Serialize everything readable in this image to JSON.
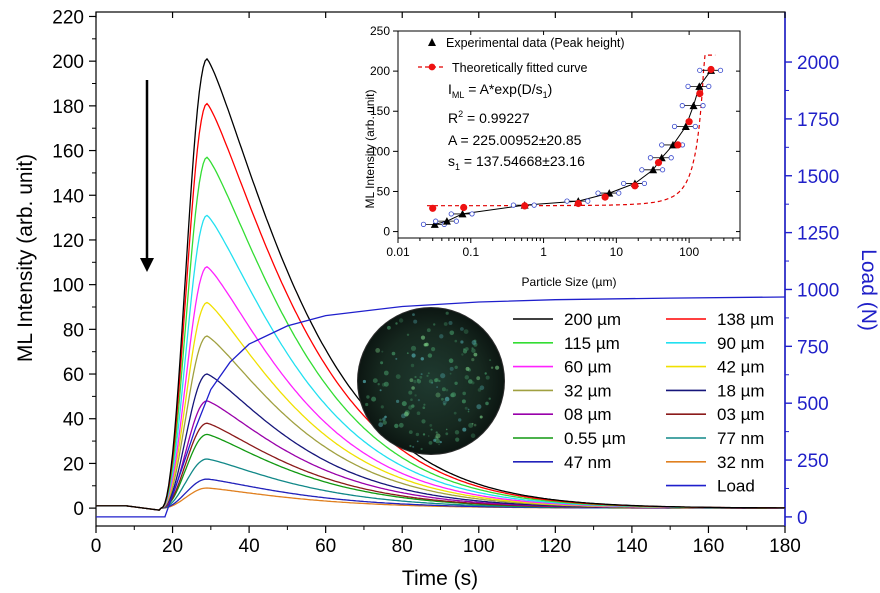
{
  "chart_data": [
    {
      "type": "line",
      "xlabel": "Time (s)",
      "ylabel": "ML Intensity (arb. unit)",
      "y2label": "Load (N)",
      "xlim": [
        0,
        180
      ],
      "ylim": [
        -8,
        222
      ],
      "y2lim": [
        -40,
        2220
      ],
      "xticks": [
        0,
        20,
        40,
        60,
        80,
        100,
        120,
        140,
        160,
        180
      ],
      "yticks": [
        0,
        20,
        40,
        60,
        80,
        100,
        120,
        140,
        160,
        180,
        200,
        220
      ],
      "y2ticks": [
        0,
        250,
        500,
        750,
        1000,
        1250,
        1500,
        1750,
        2000
      ],
      "peak_time": 29,
      "series": [
        {
          "name": "200 µm",
          "peak": 201,
          "color": "#000000"
        },
        {
          "name": "138 µm",
          "peak": 181,
          "color": "#ff0000"
        },
        {
          "name": "115 µm",
          "peak": 157,
          "color": "#33dd33"
        },
        {
          "name": "90 µm",
          "peak": 131,
          "color": "#22e0f0"
        },
        {
          "name": "60 µm",
          "peak": 108,
          "color": "#ff22ff"
        },
        {
          "name": "42 µm",
          "peak": 92,
          "color": "#f0e000"
        },
        {
          "name": "32 µm",
          "peak": 77,
          "color": "#a0a040"
        },
        {
          "name": "18 µm",
          "peak": 60,
          "color": "#15157a"
        },
        {
          "name": "08 µm",
          "peak": 48,
          "color": "#9900aa"
        },
        {
          "name": "03 µm",
          "peak": 38,
          "color": "#8b1a1a"
        },
        {
          "name": "0.55 µm",
          "peak": 33,
          "color": "#119911"
        },
        {
          "name": "77 nm",
          "peak": 22,
          "color": "#118888"
        },
        {
          "name": "47 nm",
          "peak": 13,
          "color": "#2222bb"
        },
        {
          "name": "32 nm",
          "peak": 9,
          "color": "#e08020"
        }
      ],
      "load": {
        "name": "Load",
        "color": "#1f1fcc",
        "x": [
          18,
          22,
          26,
          30,
          35,
          40,
          50,
          60,
          80,
          100,
          120,
          150,
          180
        ],
        "y": [
          0,
          190,
          390,
          560,
          680,
          760,
          840,
          885,
          925,
          945,
          955,
          962,
          967
        ]
      }
    },
    {
      "type": "scatter",
      "xlabel": "Particle Size (µm)",
      "ylabel": "ML Intensity (arb. unit)",
      "xscale": "log",
      "xlim": [
        0.01,
        500
      ],
      "ylim": [
        -8,
        250
      ],
      "xticks": [
        0.01,
        0.1,
        1,
        10,
        100
      ],
      "xticklabels": [
        "0.01",
        "0.1",
        "1",
        "10",
        "100"
      ],
      "yticks": [
        0,
        50,
        100,
        150,
        200,
        250
      ],
      "series": [
        {
          "name": "Experimental data (Peak height)",
          "x": [
            0.032,
            0.047,
            0.077,
            0.55,
            3,
            8,
            18,
            32,
            42,
            60,
            90,
            115,
            138,
            200
          ],
          "y": [
            9,
            13,
            22,
            33,
            38,
            48,
            60,
            77,
            92,
            108,
            131,
            157,
            181,
            201
          ]
        },
        {
          "name": "Theoretically fitted curve",
          "x": [
            0.03,
            0.08,
            0.55,
            3,
            7,
            18,
            38,
            70,
            100,
            140,
            200
          ],
          "y": [
            29,
            30,
            32,
            35,
            43,
            57,
            86,
            108,
            137,
            172,
            202
          ]
        }
      ],
      "annotations": {
        "formula": "I",
        "formula_sub": "ML",
        "formula_rest": " = A*exp(D/s",
        "formula_sub2": "1",
        "formula_end": ")",
        "r2_label": "R",
        "r2_sup": "2",
        "r2_value": " =  0.99227",
        "a_value": "A = 225.00952±20.85",
        "s_label": "s",
        "s_sub": "1",
        "s_value": " = 137.54668±23.16"
      }
    }
  ]
}
